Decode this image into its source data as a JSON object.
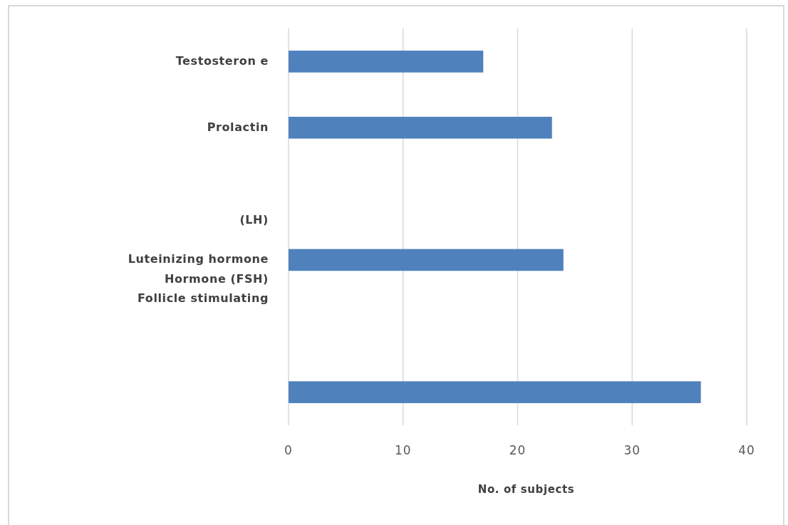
{
  "chart_data": {
    "type": "bar",
    "orientation": "horizontal",
    "categories": [
      "Testosteron e",
      "Prolactin",
      null,
      "(LH)\n\nLuteinizing hormone\nHormone (FSH)\nFollicle stimulating",
      null,
      null
    ],
    "values": [
      17,
      23,
      null,
      24,
      null,
      36
    ],
    "color": "#4f81bd",
    "xlim": [
      0,
      40
    ],
    "xticks": [
      0,
      10,
      20,
      30,
      40
    ],
    "xlabel": "No. of subjects",
    "grid": "x"
  }
}
